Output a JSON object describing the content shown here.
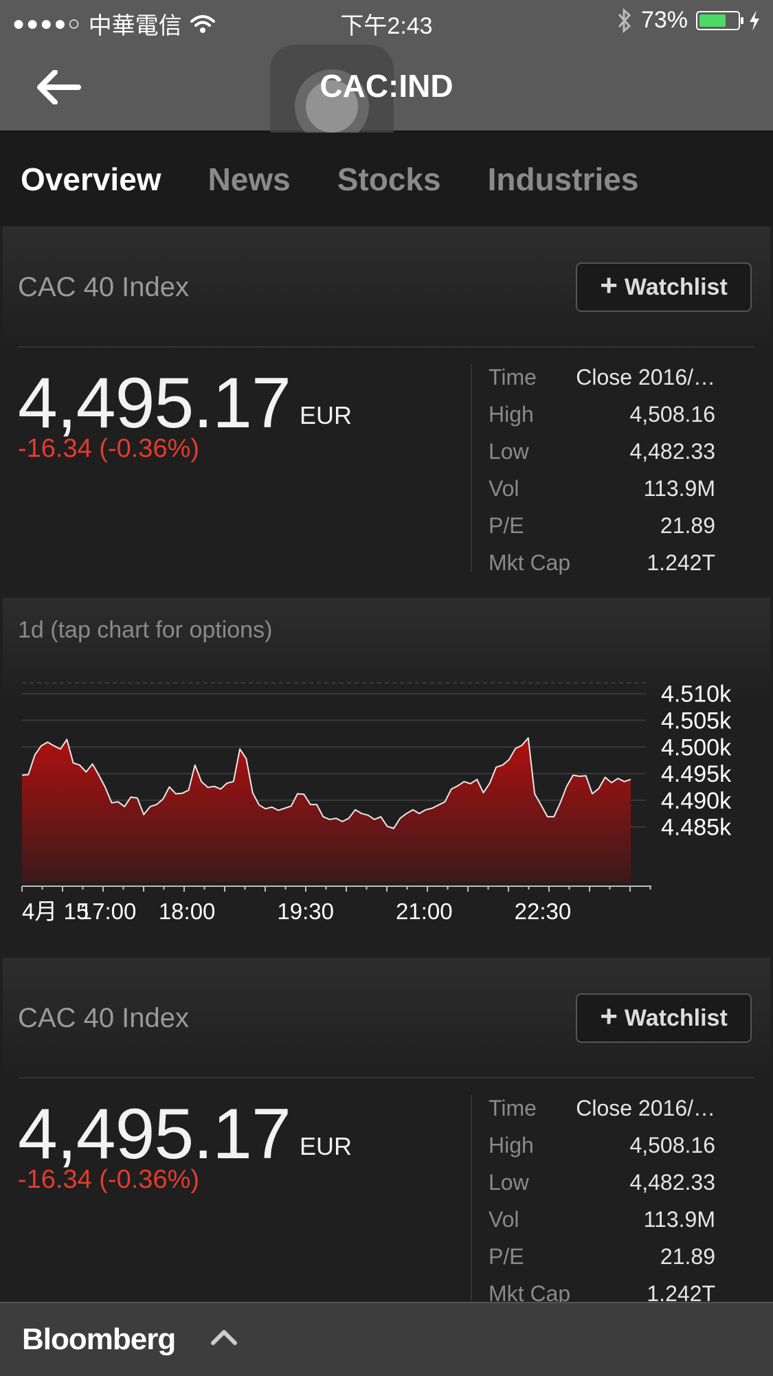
{
  "status_bar": {
    "signal": "●●●●○",
    "carrier": "中華電信",
    "time": "下午2:43",
    "battery": "73%",
    "battery_level": 0.73,
    "icons": [
      "wifi-icon",
      "bluetooth-icon",
      "battery-icon",
      "charging-icon"
    ]
  },
  "nav": {
    "title": "CAC:IND",
    "back_icon": "back-arrow-icon"
  },
  "tabs": [
    {
      "label": "Overview",
      "active": true
    },
    {
      "label": "News",
      "active": false
    },
    {
      "label": "Stocks",
      "active": false
    },
    {
      "label": "Industries",
      "active": false
    }
  ],
  "quotes": [
    {
      "name": "CAC 40 Index",
      "watchlist_label": "Watchlist",
      "price": "4,495.17",
      "currency": "EUR",
      "change": "-16.34 (-0.36%)",
      "stats": [
        {
          "label": "Time",
          "value": "Close 2016/…"
        },
        {
          "label": "High",
          "value": "4,508.16"
        },
        {
          "label": "Low",
          "value": "4,482.33"
        },
        {
          "label": "Vol",
          "value": "113.9M"
        },
        {
          "label": "P/E",
          "value": "21.89"
        },
        {
          "label": "Mkt Cap",
          "value": "1.242T"
        }
      ]
    },
    {
      "name": "CAC 40 Index",
      "watchlist_label": "Watchlist",
      "price": "4,495.17",
      "currency": "EUR",
      "change": "-16.34 (-0.36%)",
      "stats": [
        {
          "label": "Time",
          "value": "Close 2016/…"
        },
        {
          "label": "High",
          "value": "4,508.16"
        },
        {
          "label": "Low",
          "value": "4,482.33"
        },
        {
          "label": "Vol",
          "value": "113.9M"
        },
        {
          "label": "P/E",
          "value": "21.89"
        },
        {
          "label": "Mkt Cap",
          "value": "1.242T"
        }
      ]
    }
  ],
  "chart_caption": "1d  (tap chart for options)",
  "chart_data": {
    "type": "area",
    "title": "",
    "xlabel": "",
    "ylabel": "",
    "x_tick_labels": [
      "4月 15",
      "17:00",
      "18:00",
      "19:30",
      "21:00",
      "22:30"
    ],
    "y_tick_labels": [
      "4.510k",
      "4.505k",
      "4.500k",
      "4.495k",
      "4.490k",
      "4.485k"
    ],
    "y_ticks": [
      4510,
      4505,
      4500,
      4495,
      4490,
      4485
    ],
    "ylim": [
      4481.6,
      4511.9
    ],
    "x_range_hours": [
      16.0,
      23.7
    ],
    "grid": true,
    "series_color": "#a11515",
    "series": [
      {
        "name": "",
        "values": [
          4494.7,
          4494.8,
          4498.5,
          4500.2,
          4500.9,
          4500.2,
          4499.6,
          4501.4,
          4497.0,
          4496.6,
          4495.3,
          4496.8,
          4494.7,
          4492.4,
          4489.5,
          4489.7,
          4488.8,
          4490.6,
          4490.4,
          4487.3,
          4488.8,
          4489.2,
          4490.2,
          4492.5,
          4491.2,
          4491.3,
          4491.9,
          4496.6,
          4493.5,
          4492.4,
          4492.6,
          4492.1,
          4493.2,
          4493.5,
          4499.6,
          4497.8,
          4491.4,
          4489.1,
          4488.4,
          4488.7,
          4488.1,
          4488.5,
          4488.9,
          4491.2,
          4491.1,
          4489.2,
          4489.2,
          4486.9,
          4486.4,
          4486.6,
          4486.0,
          4486.6,
          4488.2,
          4487.5,
          4487.2,
          4486.4,
          4486.9,
          4485.1,
          4484.7,
          4486.6,
          4487.5,
          4488.2,
          4487.5,
          4488.2,
          4488.5,
          4489.1,
          4489.7,
          4492.1,
          4492.7,
          4493.5,
          4493.1,
          4493.9,
          4491.4,
          4493.2,
          4496.2,
          4496.6,
          4497.6,
          4499.7,
          4500.3,
          4501.7,
          4491.2,
          4489.1,
          4486.9,
          4486.9,
          4489.5,
          4492.6,
          4494.7,
          4494.5,
          4494.6,
          4491.2,
          4492.2,
          4494.3,
          4493.3,
          4494.1,
          4493.5,
          4493.9
        ]
      }
    ]
  },
  "bottom_bar": {
    "brand": "Bloomberg",
    "chevron_icon": "chevron-up-icon"
  }
}
